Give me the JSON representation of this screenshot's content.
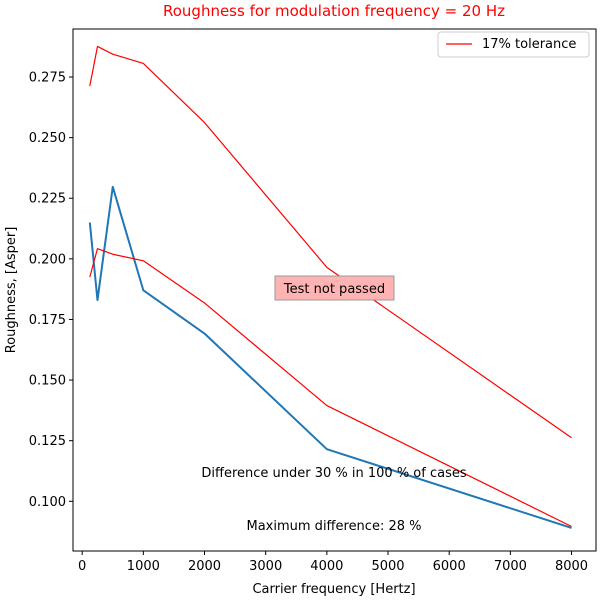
{
  "chart_data": {
    "type": "line",
    "title": "Roughness for modulation frequency = 20 Hz",
    "title_color": "#ff0000",
    "xlabel": "Carrier frequency [Hertz]",
    "ylabel": "Roughness, [Asper]",
    "xlim": [
      -150,
      8400
    ],
    "ylim": [
      0.0795,
      0.2948
    ],
    "x_ticks": [
      0,
      1000,
      2000,
      3000,
      4000,
      5000,
      6000,
      7000,
      8000
    ],
    "y_ticks": [
      0.1,
      0.125,
      0.15,
      0.175,
      0.2,
      0.225,
      0.25,
      0.275
    ],
    "x_tick_labels": [
      "0",
      "1000",
      "2000",
      "3000",
      "4000",
      "5000",
      "6000",
      "7000",
      "8000"
    ],
    "y_tick_labels": [
      "0.100",
      "0.125",
      "0.150",
      "0.175",
      "0.200",
      "0.225",
      "0.250",
      "0.275"
    ],
    "grid": false,
    "legend_position": "top-right",
    "series": [
      {
        "name": "",
        "color": "#1f77b4",
        "x": [
          125,
          250,
          500,
          1000,
          2000,
          4000,
          8000
        ],
        "y": [
          0.215,
          0.183,
          0.2297,
          0.187,
          0.1692,
          0.1215,
          0.089
        ]
      },
      {
        "name": "17% tolerance",
        "color": "#ff0000",
        "x": [
          125,
          250,
          500,
          1000,
          2000,
          4000,
          8000
        ],
        "y": [
          0.2713,
          0.2876,
          0.2844,
          0.2806,
          0.2562,
          0.1965,
          0.1262
        ]
      },
      {
        "name": "",
        "color": "#ff0000",
        "x": [
          125,
          250,
          500,
          1000,
          2000,
          4000,
          8000
        ],
        "y": [
          0.1925,
          0.2042,
          0.2019,
          0.1992,
          0.1818,
          0.1395,
          0.0896
        ]
      }
    ],
    "annotations": {
      "status": "Test not passed",
      "difference": "Difference under 30 % in 100 % of cases",
      "max_difference": "Maximum difference: 28 %"
    },
    "status_box_color": "#ffb3b3"
  }
}
